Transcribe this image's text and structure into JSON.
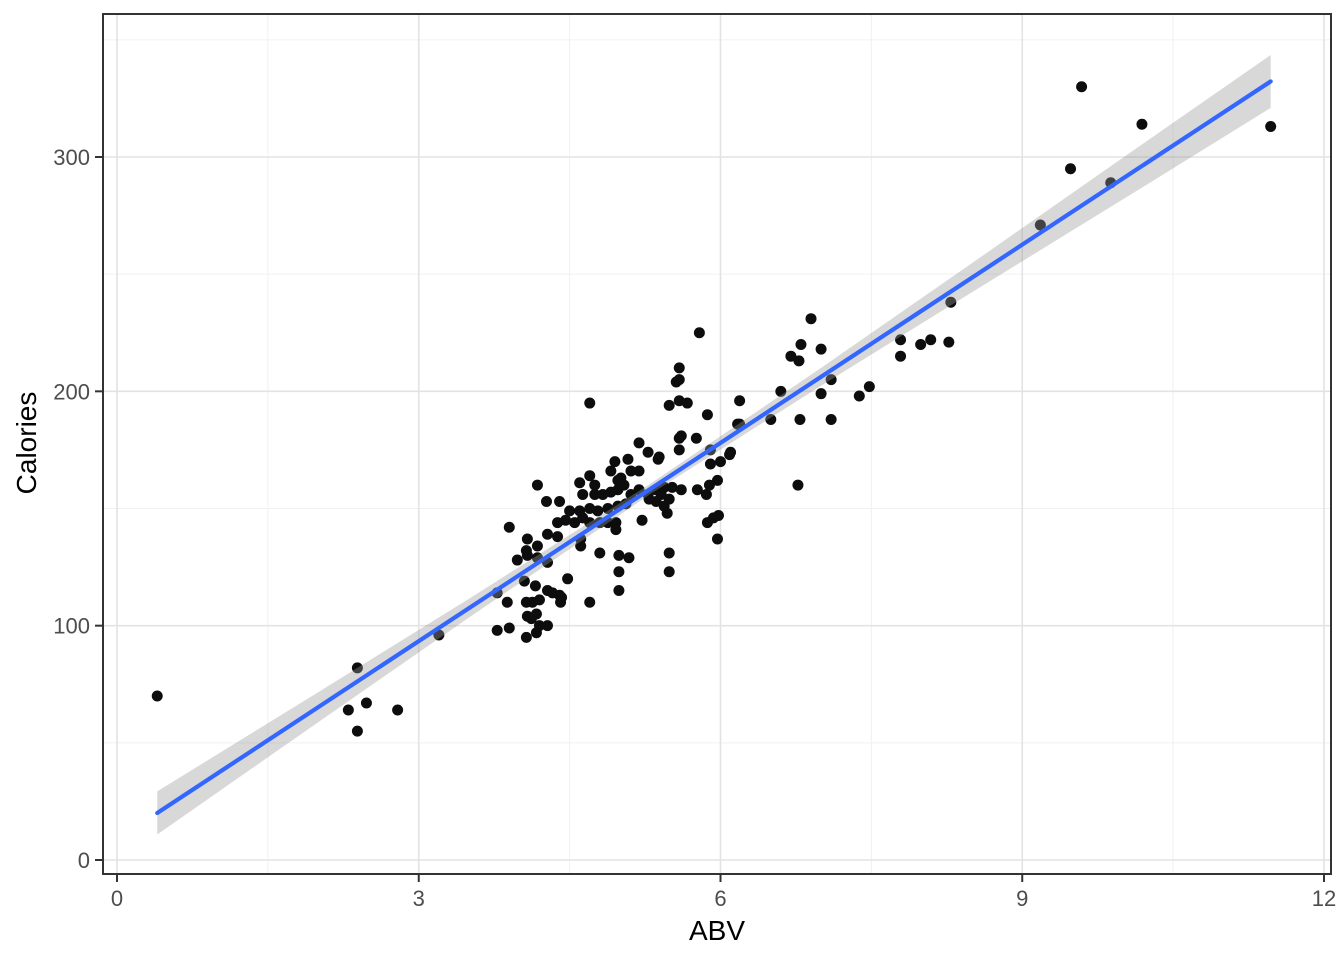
{
  "chart_data": {
    "type": "scatter",
    "title": "",
    "xlabel": "ABV",
    "ylabel": "Calories",
    "legend": "none",
    "grid": "on",
    "xlim": [
      -0.14,
      12.07
    ],
    "ylim": [
      -6,
      367
    ],
    "x_ticks": [
      0,
      3,
      6,
      9,
      12
    ],
    "y_ticks": [
      0,
      100,
      200,
      300
    ],
    "x_minor": [
      1.5,
      4.5,
      7.5,
      10.5
    ],
    "y_minor": [
      50,
      150,
      250,
      350
    ],
    "colors": {
      "point": "#0d0d0d",
      "smooth_line": "#3366FF",
      "ci_band": "#999999",
      "panel_border": "#333333",
      "grid_major": "#e3e3e3",
      "grid_minor": "#f0f0f0",
      "tick_mark": "#333333",
      "tick_label": "#4d4d4d",
      "axis_title": "#000000",
      "background": "#ffffff"
    },
    "smooth": {
      "model": "linear",
      "x_start": 0.4,
      "x_end": 11.47,
      "intercept": 8.8,
      "slope": 28.2,
      "ci_halfwidth": [
        [
          0.4,
          9.2
        ],
        [
          2.0,
          6.4
        ],
        [
          3.5,
          4.0
        ],
        [
          5.3,
          2.2
        ],
        [
          7.0,
          3.8
        ],
        [
          8.5,
          6.2
        ],
        [
          10.0,
          8.9
        ],
        [
          11.47,
          11.3
        ]
      ]
    },
    "points": [
      [
        0.4,
        70
      ],
      [
        2.3,
        64
      ],
      [
        2.39,
        55
      ],
      [
        2.39,
        82
      ],
      [
        2.48,
        67
      ],
      [
        2.79,
        64
      ],
      [
        3.2,
        96
      ],
      [
        3.78,
        98
      ],
      [
        3.9,
        99
      ],
      [
        4.07,
        95
      ],
      [
        4.17,
        97
      ],
      [
        4.2,
        100
      ],
      [
        4.28,
        100
      ],
      [
        4.08,
        104
      ],
      [
        4.12,
        103
      ],
      [
        4.17,
        105
      ],
      [
        3.88,
        110
      ],
      [
        4.07,
        110
      ],
      [
        4.13,
        110
      ],
      [
        4.2,
        111
      ],
      [
        3.78,
        114
      ],
      [
        4.05,
        119
      ],
      [
        4.16,
        117
      ],
      [
        4.28,
        115
      ],
      [
        4.33,
        114
      ],
      [
        4.4,
        113
      ],
      [
        4.42,
        112
      ],
      [
        4.41,
        110
      ],
      [
        4.7,
        110
      ],
      [
        3.98,
        128
      ],
      [
        4.08,
        130
      ],
      [
        4.18,
        129
      ],
      [
        4.28,
        127
      ],
      [
        4.48,
        120
      ],
      [
        4.18,
        134
      ],
      [
        4.07,
        132
      ],
      [
        3.9,
        142
      ],
      [
        4.61,
        134
      ],
      [
        4.8,
        131
      ],
      [
        4.99,
        130
      ],
      [
        5.09,
        129
      ],
      [
        4.99,
        123
      ],
      [
        4.99,
        115
      ],
      [
        5.49,
        131
      ],
      [
        5.49,
        123
      ],
      [
        4.08,
        137
      ],
      [
        4.28,
        139
      ],
      [
        4.38,
        138
      ],
      [
        4.61,
        137
      ],
      [
        4.55,
        144
      ],
      [
        4.46,
        145
      ],
      [
        4.38,
        144
      ],
      [
        4.63,
        146
      ],
      [
        4.7,
        144
      ],
      [
        4.8,
        144
      ],
      [
        4.88,
        144
      ],
      [
        4.96,
        144
      ],
      [
        4.96,
        141
      ],
      [
        5.22,
        145
      ],
      [
        5.87,
        144
      ],
      [
        5.93,
        146
      ],
      [
        5.98,
        147
      ],
      [
        5.97,
        137
      ],
      [
        4.18,
        160
      ],
      [
        4.27,
        153
      ],
      [
        4.4,
        153
      ],
      [
        4.5,
        149
      ],
      [
        4.6,
        149
      ],
      [
        4.7,
        150
      ],
      [
        4.78,
        149
      ],
      [
        4.88,
        150
      ],
      [
        4.98,
        151
      ],
      [
        5.06,
        152
      ],
      [
        5.11,
        156
      ],
      [
        5.19,
        158
      ],
      [
        5.28,
        156
      ],
      [
        5.36,
        158
      ],
      [
        5.44,
        159
      ],
      [
        5.52,
        159
      ],
      [
        5.61,
        158
      ],
      [
        5.77,
        158
      ],
      [
        5.89,
        160
      ],
      [
        5.97,
        162
      ],
      [
        5.36,
        153
      ],
      [
        5.44,
        151
      ],
      [
        5.47,
        148
      ],
      [
        4.6,
        161
      ],
      [
        4.75,
        160
      ],
      [
        4.98,
        162
      ],
      [
        5.04,
        160
      ],
      [
        4.98,
        158
      ],
      [
        4.91,
        157
      ],
      [
        4.83,
        156
      ],
      [
        4.75,
        156
      ],
      [
        4.63,
        156
      ],
      [
        4.7,
        164
      ],
      [
        4.91,
        166
      ],
      [
        5.01,
        163
      ],
      [
        5.11,
        166
      ],
      [
        5.19,
        166
      ],
      [
        5.29,
        154
      ],
      [
        5.39,
        172
      ],
      [
        5.41,
        156
      ],
      [
        5.49,
        154
      ],
      [
        5.86,
        156
      ],
      [
        6.77,
        160
      ],
      [
        4.95,
        170
      ],
      [
        5.08,
        171
      ],
      [
        5.28,
        174
      ],
      [
        5.38,
        171
      ],
      [
        5.59,
        175
      ],
      [
        5.9,
        175
      ],
      [
        6.1,
        174
      ],
      [
        5.9,
        169
      ],
      [
        6.0,
        170
      ],
      [
        6.09,
        173
      ],
      [
        5.19,
        178
      ],
      [
        5.59,
        180
      ],
      [
        5.76,
        180
      ],
      [
        5.61,
        181
      ],
      [
        5.87,
        190
      ],
      [
        6.17,
        186
      ],
      [
        6.19,
        186
      ],
      [
        6.5,
        188
      ],
      [
        6.79,
        188
      ],
      [
        7.1,
        188
      ],
      [
        4.7,
        195
      ],
      [
        5.49,
        194
      ],
      [
        5.59,
        196
      ],
      [
        5.67,
        195
      ],
      [
        6.19,
        196
      ],
      [
        5.56,
        204
      ],
      [
        6.6,
        200
      ],
      [
        5.59,
        210
      ],
      [
        5.59,
        205
      ],
      [
        5.79,
        225
      ],
      [
        6.7,
        215
      ],
      [
        6.78,
        213
      ],
      [
        6.8,
        220
      ],
      [
        6.9,
        231
      ],
      [
        7.0,
        218
      ],
      [
        7.0,
        199
      ],
      [
        7.1,
        205
      ],
      [
        7.38,
        198
      ],
      [
        7.48,
        202
      ],
      [
        7.79,
        222
      ],
      [
        7.79,
        215
      ],
      [
        7.99,
        220
      ],
      [
        8.09,
        222
      ],
      [
        8.27,
        221
      ],
      [
        8.29,
        238
      ],
      [
        9.18,
        271
      ],
      [
        9.48,
        295
      ],
      [
        9.59,
        330
      ],
      [
        9.88,
        289
      ],
      [
        10.19,
        314
      ],
      [
        11.47,
        313
      ]
    ]
  }
}
